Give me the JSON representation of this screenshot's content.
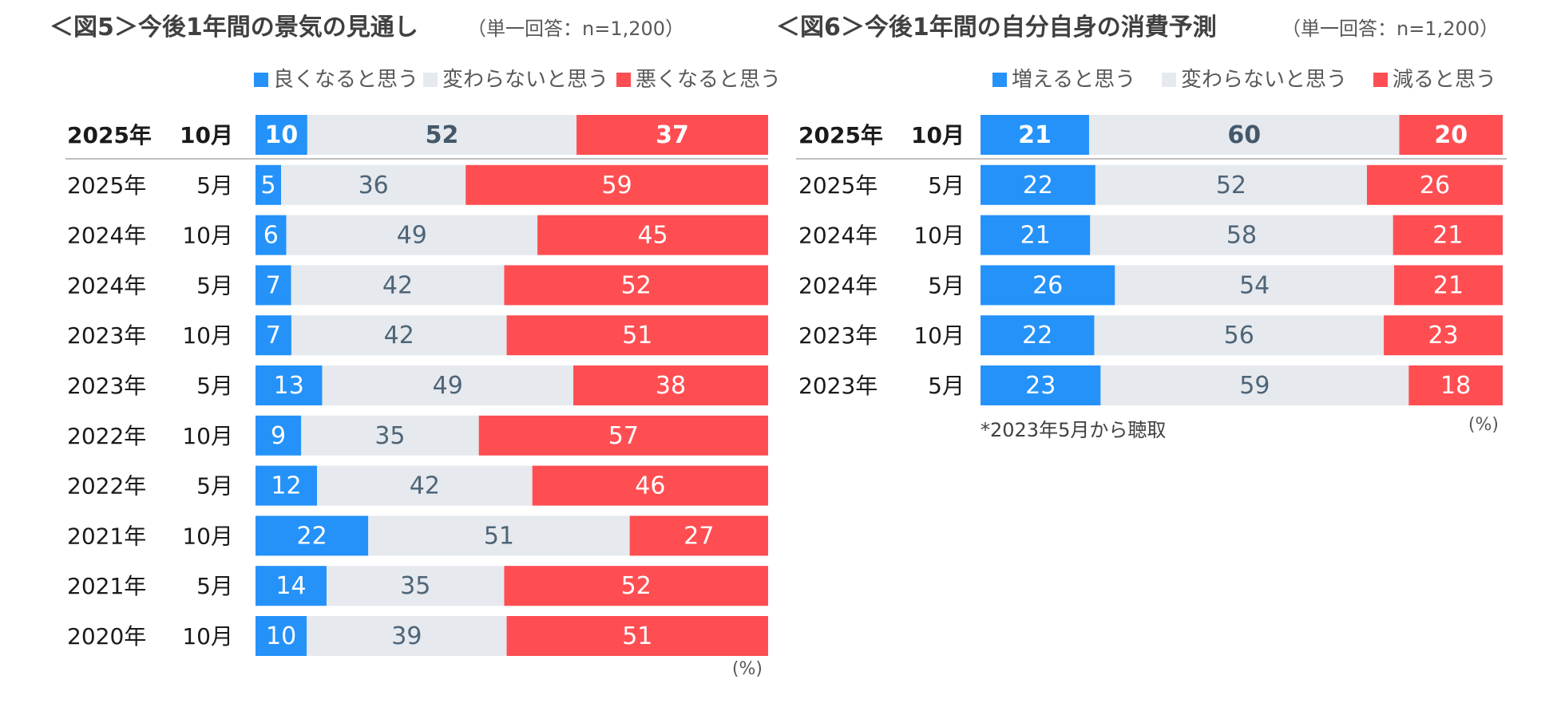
{
  "colors": {
    "positive": "#2592FA",
    "neutral": "#E6E9EE",
    "negative": "#FF4E52",
    "title_text": "#404040",
    "subtitle_text": "#595959",
    "row_label": "#1A1A1A",
    "neutral_value_text": "#4E6577",
    "bold_neutral_value_text": "#44586A",
    "separator": "#BFBFBF"
  },
  "chart_data": [
    {
      "type": "bar",
      "stacked": "horizontal-100",
      "title": "＜図5＞今後1年間の景気の見通し",
      "subtitle": "（単一回答：n=1,200）",
      "legend": [
        "良くなると思う",
        "変わらないと思う",
        "悪くなると思う"
      ],
      "categories": [
        {
          "year": "2025年",
          "month": "10月"
        },
        {
          "year": "2025年",
          "month": "5月"
        },
        {
          "year": "2024年",
          "month": "10月"
        },
        {
          "year": "2024年",
          "month": "5月"
        },
        {
          "year": "2023年",
          "month": "10月"
        },
        {
          "year": "2023年",
          "month": "5月"
        },
        {
          "year": "2022年",
          "month": "10月"
        },
        {
          "year": "2022年",
          "month": "5月"
        },
        {
          "year": "2021年",
          "month": "10月"
        },
        {
          "year": "2021年",
          "month": "5月"
        },
        {
          "year": "2020年",
          "month": "10月"
        }
      ],
      "series": [
        {
          "name": "良くなると思う",
          "values": [
            10,
            5,
            6,
            7,
            7,
            13,
            9,
            12,
            22,
            14,
            10
          ]
        },
        {
          "name": "変わらないと思う",
          "values": [
            52,
            36,
            49,
            42,
            42,
            49,
            35,
            42,
            51,
            35,
            39
          ]
        },
        {
          "name": "悪くなると思う",
          "values": [
            37,
            59,
            45,
            52,
            51,
            38,
            57,
            46,
            27,
            52,
            51
          ]
        }
      ],
      "unit_label": "(%)",
      "note": ""
    },
    {
      "type": "bar",
      "stacked": "horizontal-100",
      "title": "＜図6＞今後1年間の自分自身の消費予測",
      "subtitle": "（単一回答：n=1,200）",
      "legend": [
        "増えると思う",
        "変わらないと思う",
        "減ると思う"
      ],
      "categories": [
        {
          "year": "2025年",
          "month": "10月"
        },
        {
          "year": "2025年",
          "month": "5月"
        },
        {
          "year": "2024年",
          "month": "10月"
        },
        {
          "year": "2024年",
          "month": "5月"
        },
        {
          "year": "2023年",
          "month": "10月"
        },
        {
          "year": "2023年",
          "month": "5月"
        }
      ],
      "series": [
        {
          "name": "増えると思う",
          "values": [
            21,
            22,
            21,
            26,
            22,
            23
          ]
        },
        {
          "name": "変わらないと思う",
          "values": [
            60,
            52,
            58,
            54,
            56,
            59
          ]
        },
        {
          "name": "減ると思う",
          "values": [
            20,
            26,
            21,
            21,
            23,
            18
          ]
        }
      ],
      "unit_label": "(%)",
      "note": "*2023年5月から聴取"
    }
  ]
}
